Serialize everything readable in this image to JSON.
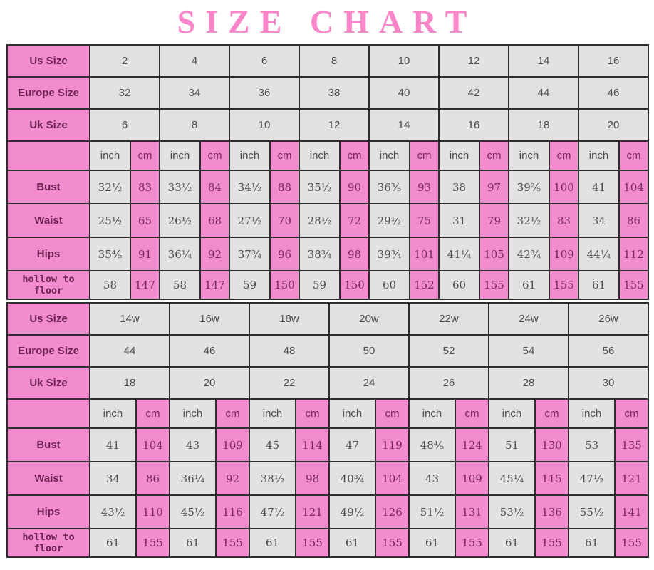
{
  "title": "SIZE CHART",
  "colors": {
    "title_pink": "#fa85c9",
    "cell_pink": "#f28ccf",
    "pink_text": "#77295a",
    "cell_gray": "#e3e1e1",
    "gray_text": "#4c4c4c",
    "border": "#2e2e2e"
  },
  "units": {
    "inch": "inch",
    "cm": "cm"
  },
  "tables": [
    {
      "size_rows": [
        {
          "label": "Us Size",
          "values": [
            "2",
            "4",
            "6",
            "8",
            "10",
            "12",
            "14",
            "16"
          ]
        },
        {
          "label": "Europe Size",
          "values": [
            "32",
            "34",
            "36",
            "38",
            "40",
            "42",
            "44",
            "46"
          ]
        },
        {
          "label": "Uk Size",
          "values": [
            "6",
            "8",
            "10",
            "12",
            "14",
            "16",
            "18",
            "20"
          ]
        }
      ],
      "measure_rows": [
        {
          "label": "Bust",
          "pairs": [
            [
              "32½",
              "83"
            ],
            [
              "33½",
              "84"
            ],
            [
              "34½",
              "88"
            ],
            [
              "35½",
              "90"
            ],
            [
              "36⅗",
              "93"
            ],
            [
              "38",
              "97"
            ],
            [
              "39⅖",
              "100"
            ],
            [
              "41",
              "104"
            ]
          ]
        },
        {
          "label": "Waist",
          "pairs": [
            [
              "25½",
              "65"
            ],
            [
              "26½",
              "68"
            ],
            [
              "27½",
              "70"
            ],
            [
              "28½",
              "72"
            ],
            [
              "29½",
              "75"
            ],
            [
              "31",
              "79"
            ],
            [
              "32½",
              "83"
            ],
            [
              "34",
              "86"
            ]
          ]
        },
        {
          "label": "Hips",
          "pairs": [
            [
              "35⅘",
              "91"
            ],
            [
              "36¼",
              "92"
            ],
            [
              "37¾",
              "96"
            ],
            [
              "38¾",
              "98"
            ],
            [
              "39¾",
              "101"
            ],
            [
              "41¼",
              "105"
            ],
            [
              "42¾",
              "109"
            ],
            [
              "44¼",
              "112"
            ]
          ]
        },
        {
          "label": "hollow to floor",
          "pairs": [
            [
              "58",
              "147"
            ],
            [
              "58",
              "147"
            ],
            [
              "59",
              "150"
            ],
            [
              "59",
              "150"
            ],
            [
              "60",
              "152"
            ],
            [
              "60",
              "155"
            ],
            [
              "61",
              "155"
            ],
            [
              "61",
              "155"
            ]
          ]
        }
      ]
    },
    {
      "size_rows": [
        {
          "label": "Us Size",
          "values": [
            "14w",
            "16w",
            "18w",
            "20w",
            "22w",
            "24w",
            "26w"
          ]
        },
        {
          "label": "Europe Size",
          "values": [
            "44",
            "46",
            "48",
            "50",
            "52",
            "54",
            "56"
          ]
        },
        {
          "label": "Uk Size",
          "values": [
            "18",
            "20",
            "22",
            "24",
            "26",
            "28",
            "30"
          ]
        }
      ],
      "measure_rows": [
        {
          "label": "Bust",
          "pairs": [
            [
              "41",
              "104"
            ],
            [
              "43",
              "109"
            ],
            [
              "45",
              "114"
            ],
            [
              "47",
              "119"
            ],
            [
              "48⅘",
              "124"
            ],
            [
              "51",
              "130"
            ],
            [
              "53",
              "135"
            ]
          ]
        },
        {
          "label": "Waist",
          "pairs": [
            [
              "34",
              "86"
            ],
            [
              "36¼",
              "92"
            ],
            [
              "38½",
              "98"
            ],
            [
              "40¾",
              "104"
            ],
            [
              "43",
              "109"
            ],
            [
              "45¼",
              "115"
            ],
            [
              "47½",
              "121"
            ]
          ]
        },
        {
          "label": "Hips",
          "pairs": [
            [
              "43½",
              "110"
            ],
            [
              "45½",
              "116"
            ],
            [
              "47½",
              "121"
            ],
            [
              "49½",
              "126"
            ],
            [
              "51½",
              "131"
            ],
            [
              "53½",
              "136"
            ],
            [
              "55½",
              "141"
            ]
          ]
        },
        {
          "label": "hollow to floor",
          "pairs": [
            [
              "61",
              "155"
            ],
            [
              "61",
              "155"
            ],
            [
              "61",
              "155"
            ],
            [
              "61",
              "155"
            ],
            [
              "61",
              "155"
            ],
            [
              "61",
              "155"
            ],
            [
              "61",
              "155"
            ]
          ]
        }
      ]
    }
  ]
}
